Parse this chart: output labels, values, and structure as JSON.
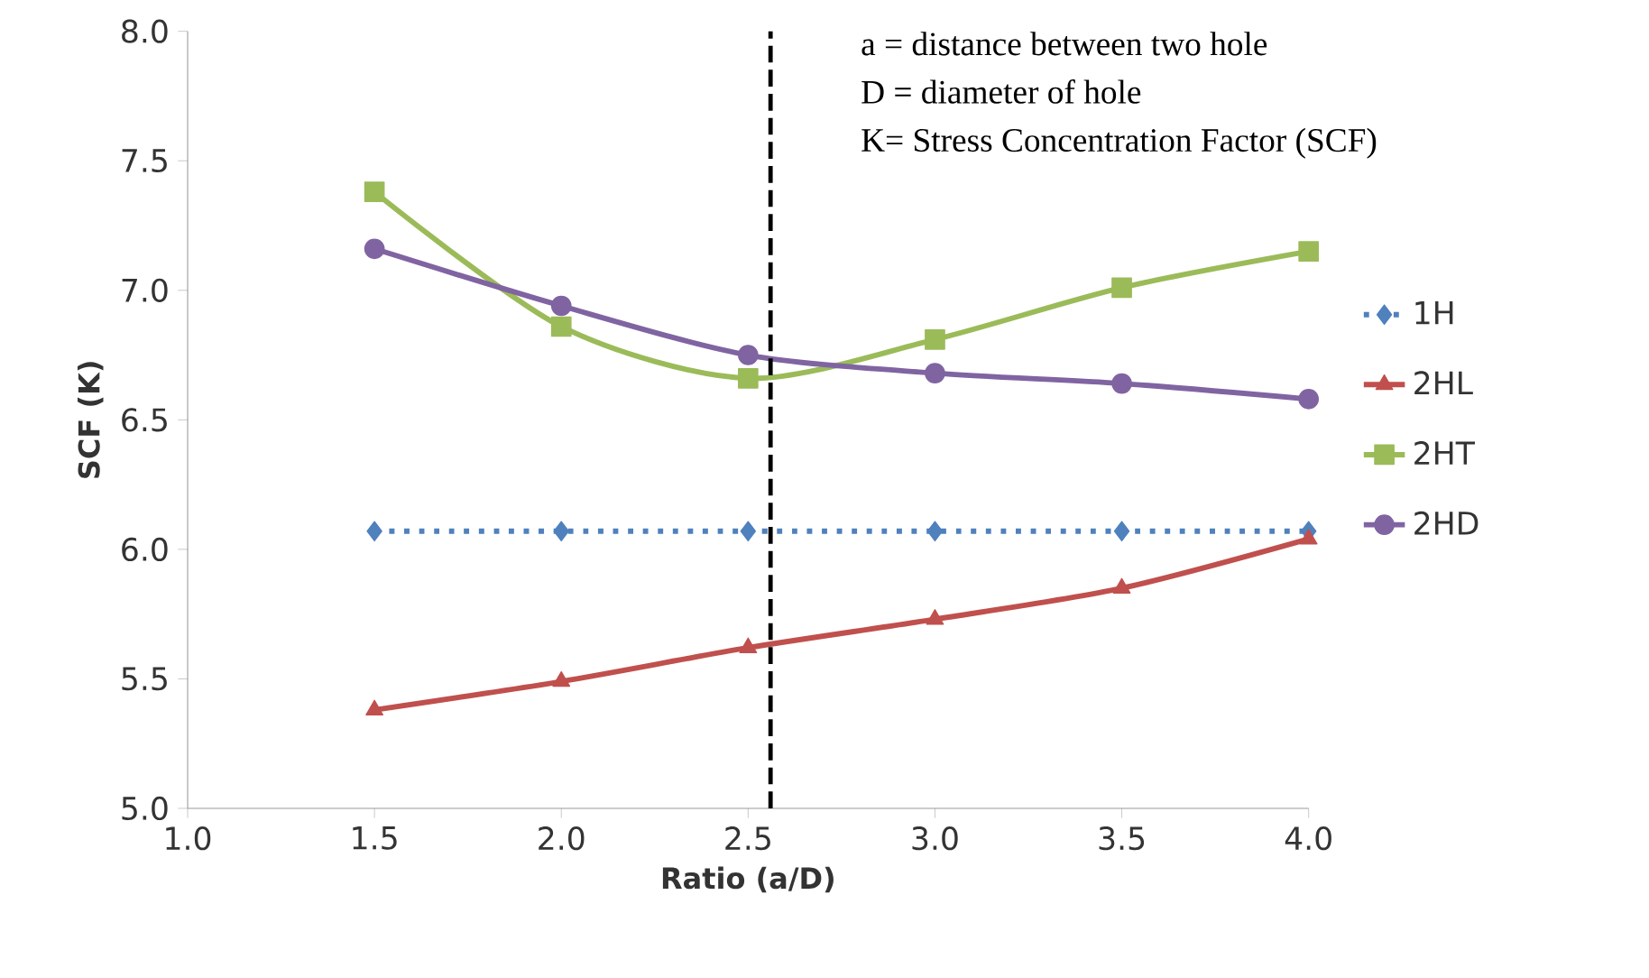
{
  "chart_data": {
    "type": "line",
    "xlabel": "Ratio (a/D)",
    "ylabel": "SCF (K)",
    "x": [
      1.5,
      2.0,
      2.5,
      3.0,
      3.5,
      4.0
    ],
    "series": [
      {
        "name": "1H",
        "color": "#4f81bd",
        "marker": "diamond",
        "line_style": "dotted",
        "values": [
          6.07,
          6.07,
          6.07,
          6.07,
          6.07,
          6.07
        ]
      },
      {
        "name": "2HL",
        "color": "#c0504d",
        "marker": "triangle",
        "line_style": "solid",
        "values": [
          5.38,
          5.49,
          5.62,
          5.73,
          5.85,
          6.04
        ]
      },
      {
        "name": "2HT",
        "color": "#9bbb59",
        "marker": "square",
        "line_style": "solid",
        "values": [
          7.38,
          6.86,
          6.66,
          6.81,
          7.01,
          7.15
        ]
      },
      {
        "name": "2HD",
        "color": "#8064a2",
        "marker": "circle",
        "line_style": "solid",
        "values": [
          7.16,
          6.94,
          6.75,
          6.68,
          6.64,
          6.58
        ]
      }
    ],
    "xlim": [
      1.0,
      4.0
    ],
    "xticks": [
      {
        "value": 1.0,
        "label": "1.0"
      },
      {
        "value": 1.5,
        "label": "1.5"
      },
      {
        "value": 2.0,
        "label": "2.0"
      },
      {
        "value": 2.5,
        "label": "2.5"
      },
      {
        "value": 3.0,
        "label": "3.0"
      },
      {
        "value": 3.5,
        "label": "3.5"
      },
      {
        "value": 4.0,
        "label": "4.0"
      }
    ],
    "ylim": [
      5.0,
      8.0
    ],
    "yticks": [
      {
        "value": 5.0,
        "label": "5.0"
      },
      {
        "value": 5.5,
        "label": "5.5"
      },
      {
        "value": 6.0,
        "label": "6.0"
      },
      {
        "value": 6.5,
        "label": "6.5"
      },
      {
        "value": 7.0,
        "label": "7.0"
      },
      {
        "value": 7.5,
        "label": "7.5"
      },
      {
        "value": 8.0,
        "label": "8.0"
      }
    ],
    "ref_lines": [
      {
        "axis": "x",
        "value": 2.56,
        "color": "#000000",
        "line_style": "dashed"
      }
    ],
    "annotations": [
      "a = distance between two hole",
      "D = diameter of hole",
      "K= Stress Concentration Factor (SCF)"
    ],
    "grid": false,
    "legend": "right"
  }
}
